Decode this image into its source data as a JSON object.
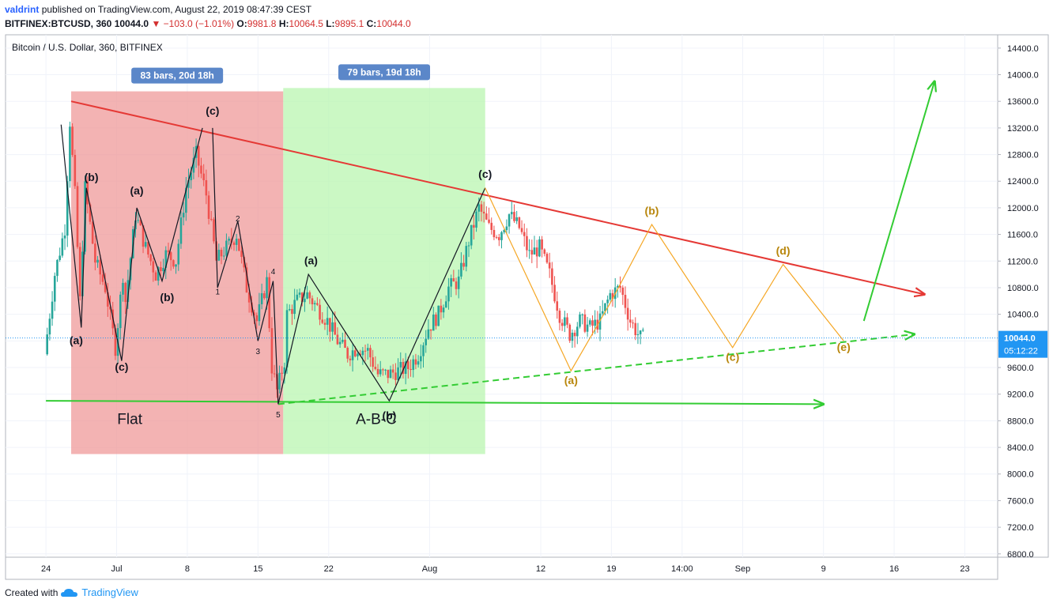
{
  "header": {
    "user": "valdrint",
    "published_text": "published on TradingView.com, August 22, 2019 08:47:39 CEST",
    "symbol": "BITFINEX:BTCUSD, 360",
    "last": "10044.0",
    "down_arrow": "▼",
    "change": "−103.0 (−1.01%)",
    "o_label": "O:",
    "o": "9981.8",
    "h_label": "H:",
    "h": "10064.5",
    "l_label": "L:",
    "l": "9895.1",
    "c_label": "C:",
    "c": "10044.0"
  },
  "footer": {
    "created_with": "Created with",
    "brand": "TradingView",
    "logo_icon": "tradingview-cloud-icon"
  },
  "chart_data": {
    "type": "candlestick",
    "title": "Bitcoin / U.S. Dollar, 360, BITFINEX",
    "x_axis": {
      "labels": [
        "24",
        "Jul",
        "8",
        "15",
        "22",
        "Aug",
        "12",
        "19",
        "14:00",
        "Sep",
        "9",
        "16",
        "23"
      ],
      "dates": [
        "2019-06-24",
        "2019-07-01",
        "2019-07-08",
        "2019-07-15",
        "2019-07-22",
        "2019-08-01",
        "2019-08-12",
        "2019-08-19",
        "2019-08-26",
        "2019-09-01",
        "2019-09-09",
        "2019-09-16",
        "2019-09-23"
      ]
    },
    "y_axis": {
      "ticks": [
        6800,
        7200,
        7600,
        8000,
        8400,
        8800,
        9200,
        9600,
        10000,
        10400,
        10800,
        11200,
        11600,
        12000,
        12400,
        12800,
        13200,
        13600,
        14000,
        14400
      ],
      "tick_labels": [
        "6800.0",
        "7200.0",
        "7600.0",
        "8000.0",
        "8400.0",
        "8800.0",
        "9200.0",
        "9600.0",
        "10000.0",
        "10400.0",
        "10800.0",
        "11200.0",
        "11600.0",
        "12000.0",
        "12400.0",
        "12800.0",
        "13200.0",
        "13600.0",
        "14000.0",
        "14400.0"
      ],
      "range": [
        6750,
        14600
      ]
    },
    "last_price": {
      "value": 10044.0,
      "label": "10044.0",
      "countdown": "05:12:22",
      "color": "#2196f3"
    },
    "grid": true,
    "colors": {
      "up": "#26a69a",
      "down": "#ef5350",
      "background": "#ffffff"
    },
    "price_path": [
      [
        "2019-06-24",
        9800
      ],
      [
        "2019-06-25",
        11000
      ],
      [
        "2019-06-26",
        11700
      ],
      [
        "2019-06-26T12",
        13300
      ],
      [
        "2019-06-27",
        12200
      ],
      [
        "2019-06-27T12",
        10600
      ],
      [
        "2019-06-28",
        12300
      ],
      [
        "2019-06-29",
        11200
      ],
      [
        "2019-06-30",
        10800
      ],
      [
        "2019-07-01",
        9900
      ],
      [
        "2019-07-01T18",
        11000
      ],
      [
        "2019-07-02",
        10600
      ],
      [
        "2019-07-03",
        11900
      ],
      [
        "2019-07-04",
        11400
      ],
      [
        "2019-07-05",
        11000
      ],
      [
        "2019-07-06",
        11300
      ],
      [
        "2019-07-07",
        11200
      ],
      [
        "2019-07-08",
        12300
      ],
      [
        "2019-07-09",
        12800
      ],
      [
        "2019-07-10",
        12200
      ],
      [
        "2019-07-11",
        11200
      ],
      [
        "2019-07-12",
        11400
      ],
      [
        "2019-07-13",
        11600
      ],
      [
        "2019-07-14",
        10800
      ],
      [
        "2019-07-15",
        10300
      ],
      [
        "2019-07-16",
        10900
      ],
      [
        "2019-07-16T12",
        9600
      ],
      [
        "2019-07-17",
        9250
      ],
      [
        "2019-07-17T18",
        9700
      ],
      [
        "2019-07-18",
        10400
      ],
      [
        "2019-07-19",
        10600
      ],
      [
        "2019-07-20",
        10700
      ],
      [
        "2019-07-21",
        10500
      ],
      [
        "2019-07-22",
        10300
      ],
      [
        "2019-07-23",
        10000
      ],
      [
        "2019-07-24",
        9800
      ],
      [
        "2019-07-25",
        9900
      ],
      [
        "2019-07-26",
        9850
      ],
      [
        "2019-07-27",
        9500
      ],
      [
        "2019-07-28",
        9500
      ],
      [
        "2019-07-29",
        9550
      ],
      [
        "2019-07-30",
        9600
      ],
      [
        "2019-07-31",
        9800
      ],
      [
        "2019-08-01",
        10200
      ],
      [
        "2019-08-02",
        10400
      ],
      [
        "2019-08-03",
        10800
      ],
      [
        "2019-08-04",
        10900
      ],
      [
        "2019-08-05",
        11500
      ],
      [
        "2019-08-06",
        12000
      ],
      [
        "2019-08-07",
        11700
      ],
      [
        "2019-08-08",
        11600
      ],
      [
        "2019-08-09",
        11900
      ],
      [
        "2019-08-10",
        11700
      ],
      [
        "2019-08-11",
        11300
      ],
      [
        "2019-08-12",
        11400
      ],
      [
        "2019-08-13",
        11000
      ],
      [
        "2019-08-14",
        10400
      ],
      [
        "2019-08-15",
        10100
      ],
      [
        "2019-08-16",
        10300
      ],
      [
        "2019-08-17",
        10200
      ],
      [
        "2019-08-18",
        10300
      ],
      [
        "2019-08-19",
        10700
      ],
      [
        "2019-08-20",
        10800
      ],
      [
        "2019-08-21",
        10300
      ],
      [
        "2019-08-22",
        10044
      ]
    ],
    "zones": [
      {
        "label": "83 bars, 20d 18h",
        "from": "2019-06-26T12",
        "to": "2019-07-17T12",
        "low": 8300,
        "high": 13750,
        "color": "#ef9a9a",
        "text": "Flat"
      },
      {
        "label": "79 bars, 19d 18h",
        "from": "2019-07-17T12",
        "to": "2019-08-06T12",
        "low": 8300,
        "high": 13800,
        "color": "#b9f6b0",
        "text": "A-B-C"
      }
    ],
    "trendlines": [
      {
        "from": [
          "2019-06-26T12",
          13600
        ],
        "to": [
          "2019-09-19",
          10700
        ],
        "color": "#e53935",
        "arrow": true
      },
      {
        "from": [
          "2019-06-24",
          9100
        ],
        "to": [
          "2019-09-09",
          9050
        ],
        "color": "#33cc33",
        "arrow": true
      },
      {
        "from": [
          "2019-07-17",
          9050
        ],
        "to": [
          "2019-09-18",
          10100
        ],
        "color": "#33cc33",
        "arrow": true,
        "dashed": true
      },
      {
        "from": [
          "2019-09-13",
          10300
        ],
        "to": [
          "2019-09-20",
          13900
        ],
        "color": "#33cc33",
        "arrow": true
      }
    ],
    "wave_paths": [
      {
        "color": "#131722",
        "points": [
          [
            "2019-06-25T12",
            13250
          ],
          [
            "2019-06-27T12",
            10200
          ],
          [
            "2019-06-28",
            12300
          ],
          [
            "2019-07-01T12",
            9700
          ],
          [
            "2019-07-03",
            12000
          ],
          [
            "2019-07-05T12",
            10900
          ],
          [
            "2019-07-09T12",
            13200
          ]
        ]
      },
      {
        "color": "#131722",
        "points": [
          [
            "2019-07-10T12",
            13200
          ],
          [
            "2019-07-11",
            10800
          ],
          [
            "2019-07-13",
            11800
          ],
          [
            "2019-07-15",
            10000
          ],
          [
            "2019-07-16T12",
            10900
          ],
          [
            "2019-07-17",
            9050
          ]
        ]
      },
      {
        "color": "#131722",
        "points": [
          [
            "2019-07-17",
            9050
          ],
          [
            "2019-07-20",
            11000
          ],
          [
            "2019-07-28",
            9100
          ],
          [
            "2019-08-06T12",
            12300
          ]
        ]
      },
      {
        "color": "#f5a623",
        "points": [
          [
            "2019-08-06T12",
            12300
          ],
          [
            "2019-08-15",
            9550
          ],
          [
            "2019-08-19",
            10600
          ],
          [
            "2019-08-23",
            11750
          ],
          [
            "2019-08-31",
            9900
          ],
          [
            "2019-09-05",
            11150
          ],
          [
            "2019-09-11",
            10000
          ]
        ]
      }
    ],
    "annotations": [
      {
        "text": "(a)",
        "at": [
          "2019-06-27",
          9950
        ],
        "color": "#131722"
      },
      {
        "text": "(b)",
        "at": [
          "2019-06-28T12",
          12400
        ],
        "color": "#131722"
      },
      {
        "text": "(c)",
        "at": [
          "2019-07-01T12",
          9550
        ],
        "color": "#131722"
      },
      {
        "text": "(a)",
        "at": [
          "2019-07-03",
          12200
        ],
        "color": "#131722"
      },
      {
        "text": "(b)",
        "at": [
          "2019-07-06",
          10600
        ],
        "color": "#131722"
      },
      {
        "text": "(c)",
        "at": [
          "2019-07-10T12",
          13400
        ],
        "color": "#131722"
      },
      {
        "text": "1",
        "at": [
          "2019-07-11",
          10700
        ],
        "color": "#131722"
      },
      {
        "text": "2",
        "at": [
          "2019-07-13",
          11800
        ],
        "color": "#131722"
      },
      {
        "text": "3",
        "at": [
          "2019-07-15",
          9800
        ],
        "color": "#131722"
      },
      {
        "text": "4",
        "at": [
          "2019-07-16T12",
          11000
        ],
        "color": "#131722"
      },
      {
        "text": "5",
        "at": [
          "2019-07-17",
          8850
        ],
        "color": "#131722"
      },
      {
        "text": "(a)",
        "at": [
          "2019-07-20T06",
          11150
        ],
        "color": "#131722"
      },
      {
        "text": "(b)",
        "at": [
          "2019-07-28",
          8820
        ],
        "color": "#131722"
      },
      {
        "text": "(c)",
        "at": [
          "2019-08-06T12",
          12450
        ],
        "color": "#131722"
      },
      {
        "text": "(a)",
        "at": [
          "2019-08-15",
          9350
        ],
        "color": "#b8860b"
      },
      {
        "text": "(b)",
        "at": [
          "2019-08-23",
          11900
        ],
        "color": "#b8860b"
      },
      {
        "text": "(c)",
        "at": [
          "2019-08-31",
          9700
        ],
        "color": "#b8860b"
      },
      {
        "text": "(d)",
        "at": [
          "2019-09-05",
          11300
        ],
        "color": "#b8860b"
      },
      {
        "text": "(e)",
        "at": [
          "2019-09-11",
          9850
        ],
        "color": "#b8860b"
      }
    ]
  }
}
